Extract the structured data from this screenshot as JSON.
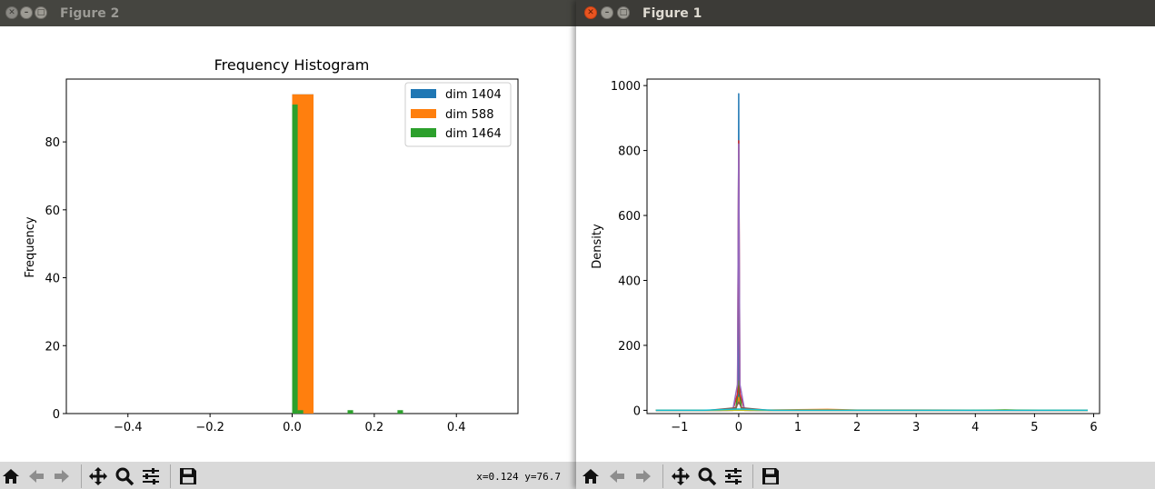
{
  "windows": {
    "figure2": {
      "title": "Figure 2",
      "coords": "x=0.124 y=76.7"
    },
    "figure1": {
      "title": "Figure 1"
    }
  },
  "toolbar": {
    "buttons": [
      "home-icon",
      "back-icon",
      "forward-icon",
      "pan-icon",
      "zoom-icon",
      "configure-icon",
      "save-icon"
    ]
  },
  "chart_data": [
    {
      "type": "bar",
      "title": "Frequency Histogram",
      "xlabel": "",
      "ylabel": "Frequency",
      "xlim": [
        -0.55,
        0.55
      ],
      "ylim": [
        0,
        98.5
      ],
      "xticks": [
        -0.4,
        -0.2,
        0.0,
        0.2,
        0.4
      ],
      "xtick_labels": [
        "−0.4",
        "−0.2",
        "0.0",
        "0.2",
        "0.4"
      ],
      "yticks": [
        0,
        20,
        40,
        60,
        80
      ],
      "legend": "top-right",
      "series": [
        {
          "name": "dim 1404",
          "color": "#1f77b4",
          "bins": [
            {
              "x0": 0.0,
              "x1": 0.052,
              "count": 94
            }
          ]
        },
        {
          "name": "dim 588",
          "color": "#ff7f0e",
          "bins": [
            {
              "x0": 0.0,
              "x1": 0.052,
              "count": 94
            }
          ]
        },
        {
          "name": "dim 1464",
          "color": "#2ca02c",
          "bins": [
            {
              "x0": 0.0,
              "x1": 0.0135,
              "count": 91
            },
            {
              "x0": 0.0135,
              "x1": 0.027,
              "count": 1
            },
            {
              "x0": 0.135,
              "x1": 0.1485,
              "count": 1
            },
            {
              "x0": 0.2565,
              "x1": 0.27,
              "count": 1
            }
          ]
        }
      ]
    },
    {
      "type": "line",
      "title": "",
      "xlabel": "",
      "ylabel": "Density",
      "xlim": [
        -1.55,
        6.1
      ],
      "ylim": [
        -10,
        1020
      ],
      "xticks": [
        -1,
        0,
        1,
        2,
        3,
        4,
        5,
        6
      ],
      "xtick_labels": [
        "−1",
        "0",
        "1",
        "2",
        "3",
        "4",
        "5",
        "6"
      ],
      "yticks": [
        0,
        200,
        400,
        600,
        800,
        1000
      ],
      "series": [
        {
          "color": "#1f77b4",
          "x": [
            -1.4,
            -0.2,
            -0.05,
            -0.01,
            0.0,
            0.01,
            0.05,
            0.2,
            1.5,
            5.9
          ],
          "y": [
            0,
            0,
            1,
            30,
            975,
            30,
            1,
            0,
            0,
            0
          ]
        },
        {
          "color": "#ff7f0e",
          "x": [
            -1.4,
            -0.2,
            -0.05,
            0.0,
            0.05,
            0.2,
            1.0,
            1.5,
            2.0,
            5.9
          ],
          "y": [
            0,
            0,
            2,
            40,
            2,
            0,
            2,
            3,
            1,
            0
          ]
        },
        {
          "color": "#2ca02c",
          "x": [
            -1.4,
            -0.3,
            -0.05,
            -0.01,
            0.0,
            0.01,
            0.05,
            0.3,
            5.9
          ],
          "y": [
            0,
            0,
            3,
            60,
            90,
            60,
            3,
            0,
            0
          ]
        },
        {
          "color": "#d62728",
          "x": [
            -1.4,
            -0.1,
            -0.02,
            0.0,
            0.02,
            0.1,
            5.9
          ],
          "y": [
            0,
            0,
            50,
            830,
            50,
            0,
            0
          ]
        },
        {
          "color": "#9467bd",
          "x": [
            -1.4,
            -0.1,
            -0.02,
            0.0,
            0.02,
            0.1,
            5.9
          ],
          "y": [
            0,
            0,
            80,
            820,
            80,
            0,
            0
          ]
        },
        {
          "color": "#8c564b",
          "x": [
            -1.4,
            -0.5,
            -0.05,
            0.0,
            0.05,
            0.5,
            5.9
          ],
          "y": [
            0,
            0,
            8,
            25,
            8,
            0,
            0
          ]
        },
        {
          "color": "#bcbd22",
          "x": [
            -1.4,
            3.5,
            4.3,
            4.5,
            4.7,
            5.5,
            5.9
          ],
          "y": [
            0,
            0,
            1,
            2,
            1,
            0,
            0
          ]
        },
        {
          "color": "#17becf",
          "x": [
            -1.4,
            -0.6,
            0.0,
            0.6,
            5.9
          ],
          "y": [
            0,
            0,
            4,
            0,
            0
          ]
        }
      ]
    }
  ]
}
